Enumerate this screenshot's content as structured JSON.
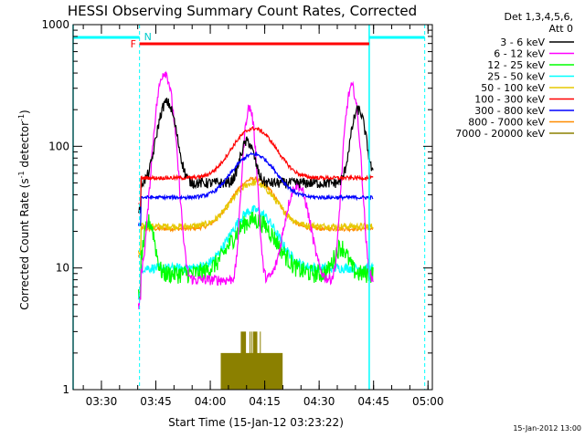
{
  "chart_data": {
    "type": "line",
    "title": "HESSI Observing Summary Count Rates, Corrected",
    "xlabel": "Start Time (15-Jan-12 03:23:22)",
    "ylabel_main": "Corrected Count Rate (s",
    "ylabel_sup1": "-1",
    "ylabel_mid": " detector",
    "ylabel_sup2": "-1",
    "ylabel_end": ")",
    "y_scale": "log",
    "ylim": [
      1,
      1000
    ],
    "xlim_minutes": [
      3.37,
      5.02
    ],
    "x_ticks": [
      "03:30",
      "03:45",
      "04:00",
      "04:15",
      "04:30",
      "04:45",
      "05:00"
    ],
    "y_ticks": [
      "1",
      "10",
      "100",
      "1000"
    ],
    "detector_note_1": "Det 1,3,4,5,6,",
    "detector_note_2": "Att 0",
    "date_stamp": "15-Jan-2012 13:00",
    "flags": {
      "flare_label": "F",
      "night_label": "N"
    },
    "series": [
      {
        "name": "3 - 6 keV",
        "color": "#000000"
      },
      {
        "name": "6 - 12 keV",
        "color": "#ff00ff"
      },
      {
        "name": "12 - 25 keV",
        "color": "#00ff00"
      },
      {
        "name": "25 - 50 keV",
        "color": "#00ffff"
      },
      {
        "name": "50 - 100 keV",
        "color": "#e6c800"
      },
      {
        "name": "100 - 300 keV",
        "color": "#ff0000"
      },
      {
        "name": "300 - 800 keV",
        "color": "#0000ff"
      },
      {
        "name": "800 - 7000 keV",
        "color": "#ff8c00"
      },
      {
        "name": "7000 - 20000 keV",
        "color": "#8b8000"
      }
    ]
  }
}
